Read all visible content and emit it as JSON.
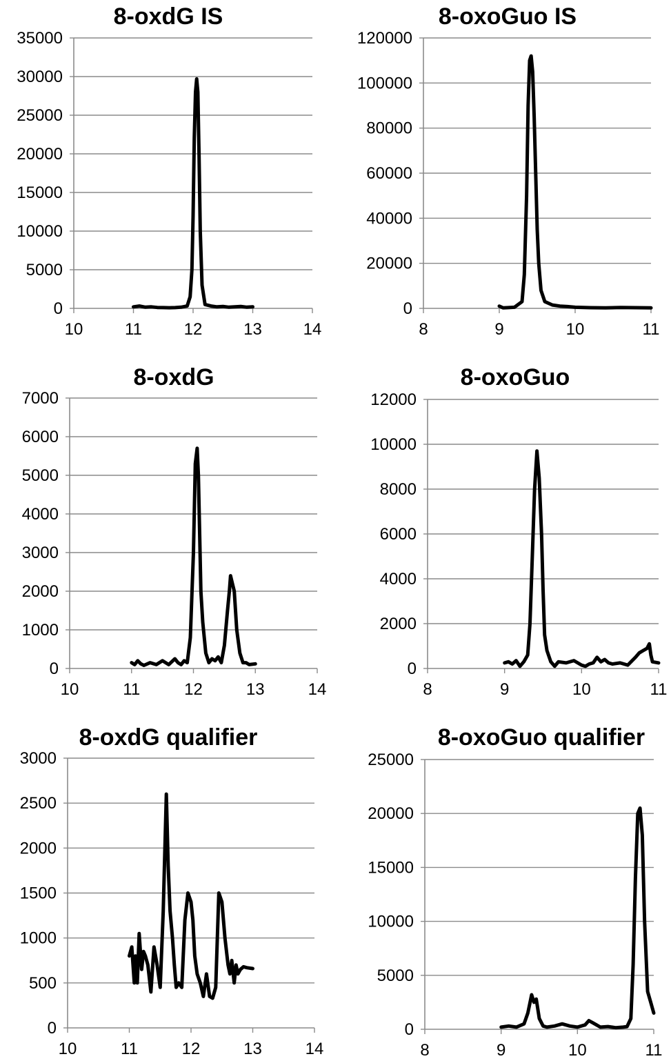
{
  "chart_data": [
    {
      "type": "line",
      "title": "8-oxdG IS",
      "xlim": [
        10,
        14
      ],
      "ylim": [
        0,
        35000
      ],
      "x_ticks": [
        "10",
        "11",
        "12",
        "13",
        "14"
      ],
      "y_ticks": [
        "0",
        "5000",
        "10000",
        "15000",
        "20000",
        "25000",
        "30000",
        "35000"
      ],
      "grid": true,
      "line_color": "#000000",
      "series": [
        {
          "x": [
            11.0,
            11.1,
            11.2,
            11.3,
            11.4,
            11.5,
            11.6,
            11.7,
            11.8,
            11.9,
            11.95,
            11.98,
            12.0,
            12.02,
            12.04,
            12.06,
            12.08,
            12.1,
            12.12,
            12.15,
            12.2,
            12.3,
            12.4,
            12.5,
            12.6,
            12.7,
            12.8,
            12.9,
            13.0
          ],
          "y": [
            200,
            300,
            150,
            200,
            120,
            100,
            80,
            100,
            150,
            300,
            1500,
            5000,
            12000,
            22000,
            28000,
            29700,
            28000,
            20000,
            10000,
            3000,
            500,
            300,
            200,
            250,
            150,
            200,
            250,
            150,
            200
          ]
        }
      ]
    },
    {
      "type": "line",
      "title": "8-oxoGuo IS",
      "xlim": [
        8,
        11
      ],
      "ylim": [
        0,
        120000
      ],
      "x_ticks": [
        "8",
        "9",
        "10",
        "11"
      ],
      "y_ticks": [
        "0",
        "20000",
        "40000",
        "60000",
        "80000",
        "100000",
        "120000"
      ],
      "grid": true,
      "line_color": "#000000",
      "series": [
        {
          "x": [
            9.0,
            9.05,
            9.1,
            9.2,
            9.3,
            9.33,
            9.36,
            9.38,
            9.4,
            9.42,
            9.44,
            9.46,
            9.48,
            9.5,
            9.52,
            9.55,
            9.6,
            9.7,
            9.8,
            9.9,
            10.0,
            10.2,
            10.4,
            10.6,
            10.8,
            11.0
          ],
          "y": [
            1000,
            200,
            300,
            500,
            3000,
            15000,
            50000,
            90000,
            110000,
            112000,
            105000,
            85000,
            60000,
            35000,
            20000,
            8000,
            3000,
            1500,
            1000,
            800,
            500,
            300,
            200,
            400,
            300,
            200
          ]
        }
      ]
    },
    {
      "type": "line",
      "title": "8-oxdG",
      "xlim": [
        10,
        14
      ],
      "ylim": [
        0,
        7000
      ],
      "x_ticks": [
        "10",
        "11",
        "12",
        "13",
        "14"
      ],
      "y_ticks": [
        "0",
        "1000",
        "2000",
        "3000",
        "4000",
        "5000",
        "6000",
        "7000"
      ],
      "grid": true,
      "line_color": "#000000",
      "series": [
        {
          "x": [
            11.0,
            11.05,
            11.1,
            11.15,
            11.2,
            11.3,
            11.4,
            11.5,
            11.6,
            11.7,
            11.75,
            11.8,
            11.85,
            11.9,
            11.95,
            12.0,
            12.03,
            12.06,
            12.08,
            12.1,
            12.12,
            12.15,
            12.2,
            12.25,
            12.3,
            12.35,
            12.4,
            12.45,
            12.5,
            12.55,
            12.58,
            12.6,
            12.63,
            12.66,
            12.7,
            12.75,
            12.8,
            12.85,
            12.9,
            13.0
          ],
          "y": [
            150,
            100,
            200,
            120,
            80,
            150,
            100,
            200,
            100,
            250,
            150,
            100,
            200,
            150,
            800,
            3000,
            5300,
            5700,
            5000,
            3500,
            2000,
            1200,
            400,
            150,
            250,
            200,
            300,
            150,
            600,
            1500,
            2000,
            2400,
            2200,
            2000,
            1000,
            400,
            150,
            150,
            100,
            120
          ]
        }
      ]
    },
    {
      "type": "line",
      "title": "8-oxoGuo",
      "xlim": [
        8,
        11
      ],
      "ylim": [
        0,
        12000
      ],
      "x_ticks": [
        "8",
        "9",
        "10",
        "11"
      ],
      "y_ticks": [
        "0",
        "2000",
        "4000",
        "6000",
        "8000",
        "10000",
        "12000"
      ],
      "grid": true,
      "line_color": "#000000",
      "series": [
        {
          "x": [
            9.0,
            9.05,
            9.1,
            9.15,
            9.2,
            9.25,
            9.3,
            9.33,
            9.36,
            9.39,
            9.42,
            9.45,
            9.48,
            9.5,
            9.52,
            9.55,
            9.6,
            9.65,
            9.7,
            9.8,
            9.9,
            10.0,
            10.05,
            10.1,
            10.15,
            10.2,
            10.25,
            10.3,
            10.35,
            10.4,
            10.5,
            10.6,
            10.7,
            10.75,
            10.8,
            10.85,
            10.88,
            10.9,
            10.92,
            11.0
          ],
          "y": [
            250,
            300,
            200,
            350,
            100,
            300,
            600,
            2000,
            5000,
            8000,
            9700,
            8500,
            6000,
            3500,
            1500,
            800,
            300,
            100,
            300,
            250,
            350,
            150,
            100,
            200,
            250,
            500,
            300,
            400,
            250,
            200,
            250,
            150,
            500,
            700,
            800,
            900,
            1100,
            600,
            300,
            250
          ]
        }
      ]
    },
    {
      "type": "line",
      "title": "8-oxdG qualifier",
      "xlim": [
        10,
        14
      ],
      "ylim": [
        0,
        3000
      ],
      "x_ticks": [
        "10",
        "11",
        "12",
        "13",
        "14"
      ],
      "y_ticks": [
        "0",
        "500",
        "1000",
        "1500",
        "2000",
        "2500",
        "3000"
      ],
      "grid": true,
      "line_color": "#000000",
      "series": [
        {
          "x": [
            11.0,
            11.04,
            11.08,
            11.1,
            11.13,
            11.16,
            11.2,
            11.23,
            11.26,
            11.3,
            11.35,
            11.4,
            11.45,
            11.5,
            11.55,
            11.6,
            11.63,
            11.66,
            11.7,
            11.73,
            11.76,
            11.8,
            11.85,
            11.9,
            11.95,
            12.0,
            12.03,
            12.06,
            12.1,
            12.15,
            12.2,
            12.25,
            12.3,
            12.35,
            12.4,
            12.45,
            12.5,
            12.55,
            12.6,
            12.63,
            12.66,
            12.7,
            12.73,
            12.76,
            12.8,
            12.85,
            12.9,
            13.0
          ],
          "y": [
            800,
            900,
            500,
            800,
            500,
            1050,
            650,
            850,
            800,
            700,
            400,
            900,
            700,
            450,
            1300,
            2600,
            1800,
            1300,
            1000,
            700,
            450,
            500,
            450,
            1200,
            1500,
            1400,
            1200,
            800,
            600,
            500,
            350,
            600,
            350,
            330,
            450,
            1500,
            1400,
            1000,
            700,
            600,
            750,
            500,
            700,
            600,
            650,
            680,
            670,
            660
          ]
        }
      ]
    },
    {
      "type": "line",
      "title": "8-oxoGuo qualifier",
      "xlim": [
        8,
        11
      ],
      "ylim": [
        0,
        25000
      ],
      "x_ticks": [
        "8",
        "9",
        "10",
        "11"
      ],
      "y_ticks": [
        "0",
        "5000",
        "10000",
        "15000",
        "20000",
        "25000"
      ],
      "grid": true,
      "line_color": "#000000",
      "series": [
        {
          "x": [
            9.0,
            9.1,
            9.2,
            9.3,
            9.35,
            9.4,
            9.43,
            9.46,
            9.5,
            9.55,
            9.6,
            9.7,
            9.8,
            9.9,
            10.0,
            10.1,
            10.15,
            10.2,
            10.25,
            10.3,
            10.4,
            10.5,
            10.6,
            10.65,
            10.7,
            10.73,
            10.76,
            10.79,
            10.82,
            10.85,
            10.88,
            10.92,
            10.96,
            11.0
          ],
          "y": [
            200,
            300,
            200,
            500,
            1500,
            3200,
            2500,
            2800,
            1000,
            300,
            200,
            300,
            500,
            300,
            200,
            400,
            800,
            600,
            400,
            200,
            250,
            150,
            200,
            250,
            1000,
            6000,
            14000,
            20000,
            20500,
            18000,
            10000,
            3500,
            2500,
            1500
          ]
        }
      ]
    }
  ]
}
